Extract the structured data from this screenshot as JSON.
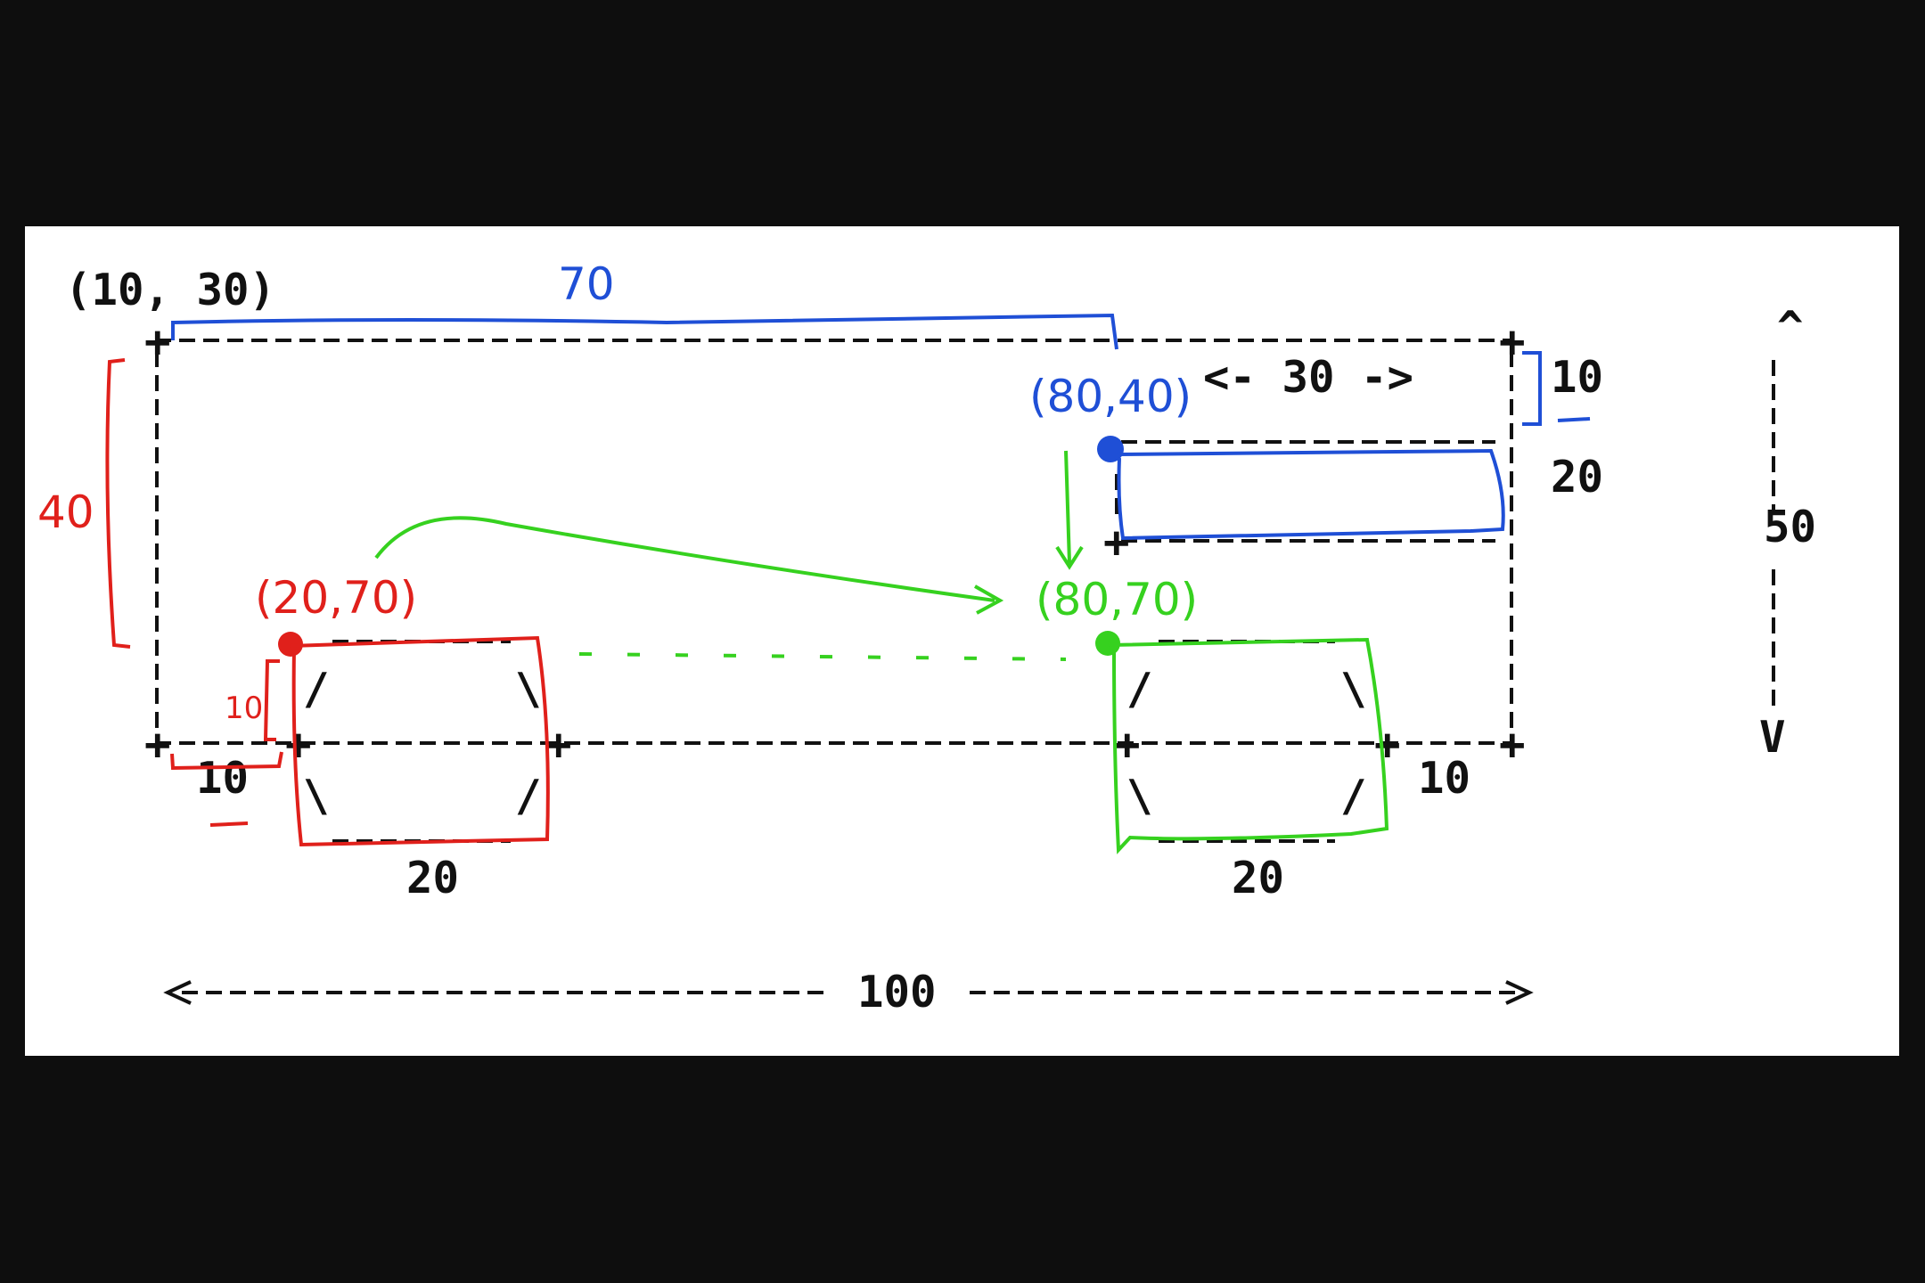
{
  "labels": {
    "origin": "(10, 30)",
    "outer_width_hand": "70",
    "red_height_hand": "40",
    "right_ten": "10",
    "twenty_right": "20",
    "fifty": "50",
    "thirty": "<- 30 ->",
    "blue_point": "(80,40)",
    "red_point": "(20,70)",
    "green_point": "(80,70)",
    "left_ten_small": "10",
    "left_ten": "10",
    "right_wheel_ten": "10",
    "left_wheel_width": "20",
    "right_wheel_width": "20",
    "total_width": "100",
    "up_arrow": "^",
    "down_arrow": "V"
  },
  "colors": {
    "red": "#e0201b",
    "blue": "#1f4fd6",
    "green": "#36d11f",
    "ink": "#111111",
    "background": "#ffffff"
  }
}
